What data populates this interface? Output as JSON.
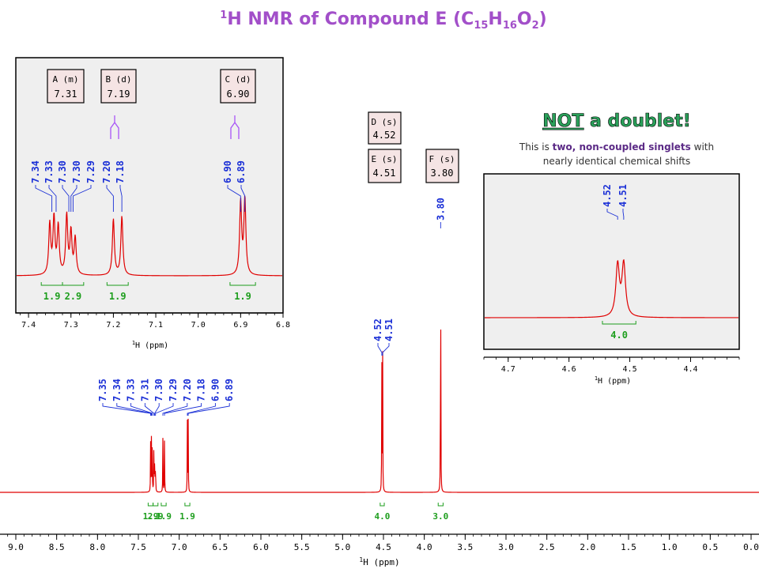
{
  "title": {
    "prefix": "1",
    "text_main": "H NMR of Compound E (C",
    "sub1": "15",
    "mid1": "H",
    "sub2": "16",
    "mid2": "O",
    "sub3": "2",
    "end": ")"
  },
  "colors": {
    "spectrum": "#e00000",
    "peak_label": "#1a2fd6",
    "integral": "#1e9e1e",
    "panel_bg": "#efefef",
    "box_fill": "#f5e4e4",
    "note_title": "#2aa15a",
    "note_emph": "#5b2a86",
    "title": "#a24fc9",
    "multiplet_icon": "#a855f7"
  },
  "chart_data": [
    {
      "type": "line",
      "name": "main-spectrum",
      "xlabel_prefix": "1",
      "xlabel": "H (ppm)",
      "xlim": [
        9.0,
        0.0
      ],
      "xticks": [
        "9.0",
        "8.5",
        "8.0",
        "7.5",
        "7.0",
        "6.5",
        "6.0",
        "5.5",
        "5.0",
        "4.5",
        "4.0",
        "3.5",
        "3.0",
        "2.5",
        "2.0",
        "1.5",
        "1.0",
        "0.5",
        "0.0"
      ],
      "peaks": [
        {
          "ppm": 7.35,
          "height": 0.18
        },
        {
          "ppm": 7.34,
          "height": 0.2
        },
        {
          "ppm": 7.33,
          "height": 0.17
        },
        {
          "ppm": 7.31,
          "height": 0.21
        },
        {
          "ppm": 7.3,
          "height": 0.15
        },
        {
          "ppm": 7.29,
          "height": 0.13
        },
        {
          "ppm": 7.2,
          "height": 0.2
        },
        {
          "ppm": 7.18,
          "height": 0.21
        },
        {
          "ppm": 6.9,
          "height": 0.26
        },
        {
          "ppm": 6.89,
          "height": 0.27
        },
        {
          "ppm": 4.52,
          "height": 0.51
        },
        {
          "ppm": 4.51,
          "height": 0.52
        },
        {
          "ppm": 3.8,
          "height": 1.0
        }
      ],
      "peak_labels": [
        {
          "group": "aromatic",
          "labels": [
            "7.35",
            "7.34",
            "7.33",
            "7.31",
            "7.30",
            "7.29",
            "7.20",
            "7.18",
            "6.90",
            "6.89"
          ]
        },
        {
          "group": "ch2",
          "labels": [
            "4.52",
            "4.51"
          ]
        },
        {
          "group": "ome",
          "labels": [
            "3.80"
          ]
        }
      ],
      "integrals": [
        {
          "from": 7.38,
          "to": 7.32,
          "value": "1.9"
        },
        {
          "from": 7.32,
          "to": 7.26,
          "value": "2.9"
        },
        {
          "from": 7.22,
          "to": 7.16,
          "value": "1.9"
        },
        {
          "from": 6.93,
          "to": 6.87,
          "value": "1.9"
        },
        {
          "from": 4.54,
          "to": 4.49,
          "value": "4.0"
        },
        {
          "from": 3.83,
          "to": 3.77,
          "value": "3.0"
        }
      ]
    },
    {
      "type": "line",
      "name": "aromatic-inset",
      "xlabel_prefix": "1",
      "xlabel": "H (ppm)",
      "xlim": [
        7.43,
        6.8
      ],
      "xticks": [
        "7.4",
        "7.3",
        "7.2",
        "7.1",
        "7.0",
        "6.9",
        "6.8"
      ],
      "peak_labels": [
        "7.34",
        "7.33",
        "7.30",
        "7.30",
        "7.29",
        "7.20",
        "7.18",
        "6.90",
        "6.89"
      ],
      "integrals": [
        {
          "from": 7.37,
          "to": 7.32,
          "value": "1.9"
        },
        {
          "from": 7.32,
          "to": 7.27,
          "value": "2.9"
        },
        {
          "from": 7.215,
          "to": 7.165,
          "value": "1.9"
        },
        {
          "from": 6.925,
          "to": 6.865,
          "value": "1.9"
        }
      ]
    },
    {
      "type": "line",
      "name": "ch2-inset",
      "xlabel_prefix": "1",
      "xlabel": "H (ppm)",
      "xlim": [
        4.74,
        4.32
      ],
      "xticks": [
        "4.7",
        "4.6",
        "4.5",
        "4.4"
      ],
      "peak_labels": [
        "4.52",
        "4.51"
      ],
      "integrals": [
        {
          "from": 4.545,
          "to": 4.49,
          "value": "4.0"
        }
      ]
    }
  ],
  "assignments": [
    {
      "label": "A (m)",
      "value": "7.31"
    },
    {
      "label": "B (d)",
      "value": "7.19"
    },
    {
      "label": "C (d)",
      "value": "6.90"
    },
    {
      "label": "D (s)",
      "value": "4.52"
    },
    {
      "label": "E (s)",
      "value": "4.51"
    },
    {
      "label": "F (s)",
      "value": "3.80"
    }
  ],
  "note": {
    "heading_not": "NOT",
    "heading_rest": " a doublet!",
    "line1_pre": "This is ",
    "line1_emph": "two, non-coupled singlets",
    "line1_post": " with",
    "line2": "nearly identical chemical shifts"
  }
}
